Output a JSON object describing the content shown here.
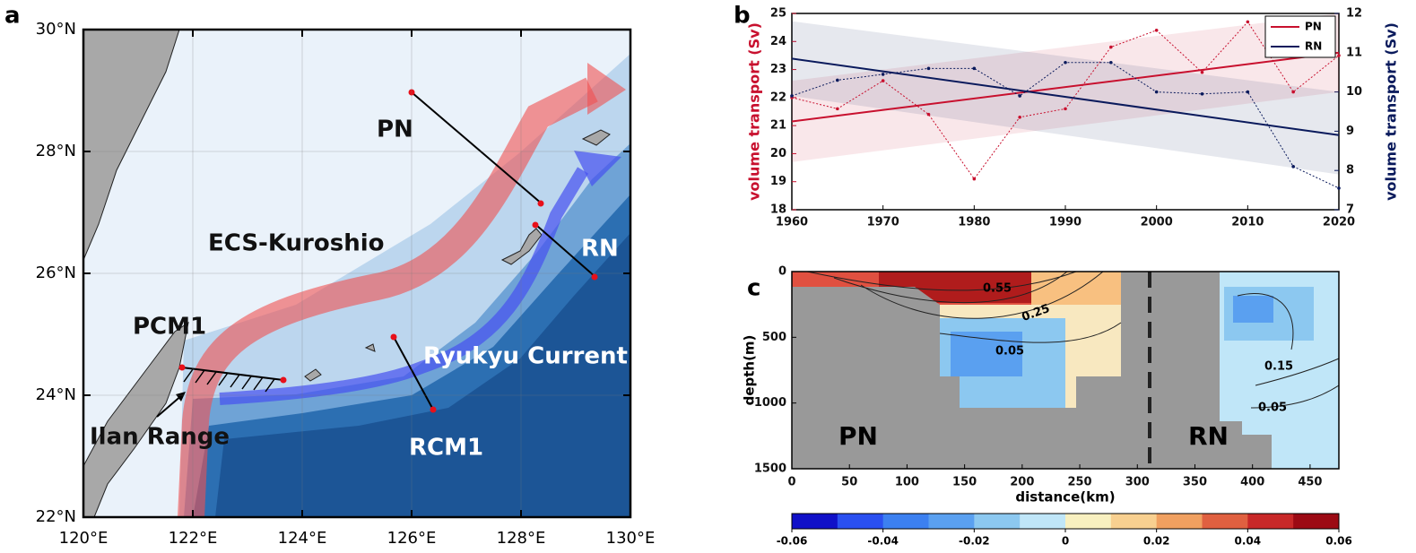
{
  "panel_labels": [
    "a",
    "b",
    "c"
  ],
  "map": {
    "xticks": [
      "120°E",
      "122°E",
      "124°E",
      "126°E",
      "128°E",
      "130°E"
    ],
    "yticks": [
      "30°N",
      "28°N",
      "26°N",
      "24°N",
      "22°N"
    ],
    "labels": [
      "PN",
      "ECS-Kuroshio",
      "RN",
      "PCM1",
      "Ryukyu Current",
      "Ilan Range",
      "RCM1"
    ]
  },
  "chart_data": [
    {
      "type": "line",
      "xlim": [
        1960,
        2020
      ],
      "xticks": [
        1960,
        1970,
        1980,
        1990,
        2000,
        2010,
        2020
      ],
      "ylim": [
        18,
        25
      ],
      "yticks": [
        18,
        19,
        20,
        21,
        22,
        23,
        24,
        25
      ],
      "y2lim": [
        7,
        12
      ],
      "y2ticks": [
        7,
        8,
        9,
        10,
        11,
        12
      ],
      "ylabel": "volume transport (Sv)",
      "y2label": "volume transport (Sv)",
      "legend": "upper right",
      "x": [
        1960,
        1965,
        1970,
        1975,
        1980,
        1985,
        1990,
        1995,
        2000,
        2005,
        2010,
        2015,
        2020
      ],
      "series": [
        {
          "name": "PN",
          "color": "#c8102e",
          "values": [
            22.0,
            21.6,
            22.6,
            21.4,
            19.1,
            21.3,
            21.6,
            23.8,
            24.4,
            22.9,
            24.7,
            22.2,
            23.5
          ],
          "trend": {
            "x": [
              1960,
              2020
            ],
            "values": [
              21.15,
              23.6
            ],
            "lower": [
              19.7,
              22.2
            ],
            "upper": [
              22.6,
              25.0
            ]
          }
        },
        {
          "name": "RN",
          "color": "#0a1a5c",
          "axis": "y2",
          "values": [
            9.9,
            10.3,
            10.45,
            10.6,
            10.6,
            9.9,
            10.75,
            10.75,
            10.0,
            9.95,
            10.0,
            8.1,
            7.55
          ],
          "trend": {
            "x": [
              1960,
              2020
            ],
            "values": [
              10.85,
              8.9
            ],
            "lower": [
              9.9,
              7.9
            ],
            "upper": [
              11.8,
              10.0
            ]
          }
        }
      ]
    },
    {
      "type": "section",
      "xlim": [
        0,
        475
      ],
      "xticks": [
        0,
        50,
        100,
        150,
        200,
        250,
        300,
        350,
        400,
        450
      ],
      "ylim": [
        0,
        1500
      ],
      "yticks": [
        0,
        500,
        1000,
        1500
      ],
      "y_inverted": true,
      "xlabel": "distance(km)",
      "ylabel": "depth(m)",
      "sections": [
        "PN",
        "RN"
      ],
      "divider_x": 311,
      "contour_labels": [
        0.55,
        0.25,
        0.05,
        0.15,
        0.05
      ],
      "colorbar": {
        "lim": [
          -0.06,
          0.06
        ],
        "ticks": [
          -0.06,
          -0.04,
          -0.02,
          0,
          0.02,
          0.04,
          0.06
        ],
        "colors": [
          "#1010c8",
          "#2a50f0",
          "#3c80f0",
          "#5aa0f0",
          "#8cc8f0",
          "#c0e6f8",
          "#f8f0c0",
          "#f8d090",
          "#f0a060",
          "#e06040",
          "#c82828",
          "#9c0a14"
        ]
      }
    }
  ]
}
